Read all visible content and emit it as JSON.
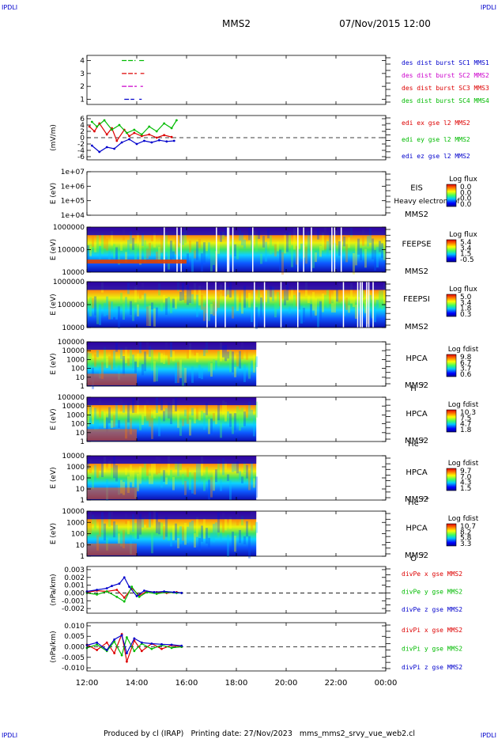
{
  "header": {
    "corner_tl": "IPDLI",
    "corner_tr": "IPDLI",
    "corner_bl": "IPDLI",
    "corner_br": "IPDLI",
    "spacecraft": "MMS2",
    "datetime": "07/Nov/2015 12:00"
  },
  "footer": {
    "text": "Produced by cl (IRAP)   Printing date: 27/Nov/2023   mms_mms2_srvy_vue_web2.cl"
  },
  "time_axis": {
    "ticks": [
      "12:00",
      "14:00",
      "16:00",
      "18:00",
      "20:00",
      "22:00",
      "00:00"
    ],
    "start_hour": 12,
    "end_hour": 24
  },
  "chart_data": [
    {
      "type": "line",
      "id": "burst",
      "ylabel": "",
      "yticks": [
        "1",
        "2",
        "3",
        "4"
      ],
      "ylim": [
        0.6,
        4.4
      ],
      "legend": [
        {
          "label": "des dist burst SC1 MMS1",
          "color": "#0000cc"
        },
        {
          "label": "des dist burst SC2 MMS2",
          "color": "#cc00cc"
        },
        {
          "label": "des dist burst SC3 MMS3",
          "color": "#dd0000"
        },
        {
          "label": "des dist burst SC4 MMS4",
          "color": "#00bb00"
        }
      ],
      "series": [
        {
          "name": "des dist burst SC4 MMS4",
          "y": 4,
          "intervals": [
            [
              13.4,
              13.95
            ],
            [
              14.1,
              14.3
            ]
          ]
        },
        {
          "name": "des dist burst SC3 MMS3",
          "y": 3,
          "intervals": [
            [
              13.4,
              14.0
            ],
            [
              14.15,
              14.3
            ]
          ]
        },
        {
          "name": "des dist burst SC2 MMS2",
          "y": 2,
          "intervals": [
            [
              13.4,
              14.0
            ],
            [
              14.15,
              14.25
            ]
          ]
        },
        {
          "name": "des dist burst SC1 MMS1",
          "y": 1,
          "intervals": [
            [
              13.5,
              13.9
            ],
            [
              14.1,
              14.2
            ]
          ]
        }
      ]
    },
    {
      "type": "line",
      "id": "edi",
      "ylabel": "(mV/m)",
      "yticks": [
        "-6",
        "-4",
        "-2",
        "0",
        "2",
        "4",
        "6"
      ],
      "ylim": [
        -7,
        7
      ],
      "legend": [
        {
          "label": "edi ex gse l2 MMS2",
          "color": "#dd0000"
        },
        {
          "label": "edi ey gse l2 MMS2",
          "color": "#00bb00"
        },
        {
          "label": "edi ez gse l2 MMS2",
          "color": "#0000cc"
        }
      ],
      "series": [
        {
          "name": "edi ex gse l2 MMS2",
          "x": [
            12.1,
            12.3,
            12.5,
            12.8,
            13.0,
            13.2,
            13.5,
            13.7,
            13.9,
            14.2,
            14.5,
            14.8,
            15.1,
            15.4
          ],
          "values": [
            3.5,
            2.0,
            4.5,
            1.0,
            3.0,
            -1.0,
            2.5,
            0.5,
            1.5,
            0.5,
            1.0,
            0.0,
            0.8,
            0.2
          ]
        },
        {
          "name": "edi ey gse l2 MMS2",
          "x": [
            12.2,
            12.4,
            12.7,
            13.0,
            13.3,
            13.6,
            13.9,
            14.2,
            14.5,
            14.8,
            15.1,
            15.4,
            15.6
          ],
          "values": [
            5.0,
            3.5,
            5.5,
            2.5,
            4.0,
            1.5,
            2.5,
            1.0,
            3.5,
            2.0,
            4.5,
            3.0,
            5.5
          ]
        },
        {
          "name": "edi ez gse l2 MMS2",
          "x": [
            12.2,
            12.5,
            12.8,
            13.1,
            13.4,
            13.7,
            14.0,
            14.3,
            14.6,
            14.9,
            15.2,
            15.5
          ],
          "values": [
            -2.5,
            -4.5,
            -3.0,
            -3.5,
            -1.5,
            -0.5,
            -2.0,
            -1.0,
            -1.5,
            -0.8,
            -1.2,
            -1.0
          ]
        }
      ]
    },
    {
      "type": "heatmap",
      "id": "eis",
      "ylabel": "E (eV)",
      "yticks": [
        "1e+04",
        "1e+05",
        "1e+06",
        "1e+07"
      ],
      "ylim": [
        10000,
        10000000
      ],
      "instrument": "EIS",
      "spacecraft": "MMS2",
      "product": "Heavy electron tof",
      "cbar_title": "Log flux",
      "cbar_ticks": [
        "0.0",
        "0.0",
        "0.0",
        "0.0"
      ],
      "data_extent": []
    },
    {
      "type": "heatmap",
      "id": "feepse",
      "ylabel": "E (eV)",
      "yticks": [
        "10000",
        "100000",
        "1000000"
      ],
      "ylim": [
        10000,
        1000000
      ],
      "instrument": "FEEPSE",
      "spacecraft": "MMS2",
      "cbar_title": "Log flux",
      "cbar_ticks": [
        "5.4",
        "3.4",
        "1.5",
        "-0.5"
      ],
      "data_extent": [
        12.0,
        24.0
      ]
    },
    {
      "type": "heatmap",
      "id": "feepsi",
      "ylabel": "E (eV)",
      "yticks": [
        "10000",
        "100000",
        "1000000"
      ],
      "ylim": [
        10000,
        1000000
      ],
      "instrument": "FEEPSI",
      "spacecraft": "MMS2",
      "cbar_title": "Log flux",
      "cbar_ticks": [
        "5.0",
        "3.4",
        "1.8",
        "0.3"
      ],
      "data_extent": [
        12.0,
        24.0
      ]
    },
    {
      "type": "heatmap",
      "id": "hpca_h",
      "ylabel": "E (eV)",
      "yticks": [
        "1",
        "10",
        "100",
        "1000",
        "10000",
        "100000"
      ],
      "ylim": [
        1,
        100000
      ],
      "instrument": "HPCA",
      "spacecraft": "MMS2",
      "ion": "H",
      "ion_sup": "+",
      "cbar_title": "Log fdist",
      "cbar_ticks": [
        "9.8",
        "6.7",
        "3.7",
        "0.6"
      ],
      "data_extent": [
        12.0,
        18.8
      ]
    },
    {
      "type": "heatmap",
      "id": "hpca_he",
      "ylabel": "E (eV)",
      "yticks": [
        "1",
        "10",
        "100",
        "1000",
        "10000",
        "100000"
      ],
      "ylim": [
        1,
        100000
      ],
      "instrument": "HPCA",
      "spacecraft": "MMS2",
      "ion": "He",
      "ion_sup": "+",
      "cbar_title": "Log fdist",
      "cbar_ticks": [
        "10.3",
        "7.5",
        "4.7",
        "1.8"
      ],
      "data_extent": [
        12.0,
        18.8
      ]
    },
    {
      "type": "heatmap",
      "id": "hpca_hepp",
      "ylabel": "E (eV)",
      "yticks": [
        "1",
        "10",
        "100",
        "1000",
        "10000"
      ],
      "ylim": [
        1,
        10000
      ],
      "instrument": "HPCA",
      "spacecraft": "MMS2",
      "ion": "He",
      "ion_sup": "++",
      "cbar_title": "Log fdist",
      "cbar_ticks": [
        "9.7",
        "7.0",
        "4.3",
        "1.5"
      ],
      "data_extent": [
        12.0,
        18.8
      ]
    },
    {
      "type": "heatmap",
      "id": "hpca_o",
      "ylabel": "E (eV)",
      "yticks": [
        "1",
        "10",
        "100",
        "1000",
        "10000"
      ],
      "ylim": [
        1,
        10000
      ],
      "instrument": "HPCA",
      "spacecraft": "MMS2",
      "ion": "O",
      "ion_sup": "+",
      "cbar_title": "Log fdist",
      "cbar_ticks": [
        "10.7",
        "8.2",
        "5.8",
        "3.3"
      ],
      "data_extent": [
        12.0,
        18.8
      ]
    },
    {
      "type": "line",
      "id": "divpe",
      "ylabel": "(nPa/km)",
      "yticks": [
        "-0.002",
        "-0.001",
        "0.000",
        "0.001",
        "0.002",
        "0.003"
      ],
      "ylim": [
        -0.0026,
        0.0034
      ],
      "legend": [
        {
          "label": "divPe x gse MMS2",
          "color": "#dd0000"
        },
        {
          "label": "divPe y gse MMS2",
          "color": "#00bb00"
        },
        {
          "label": "divPe z gse MMS2",
          "color": "#0000cc"
        }
      ],
      "series": [
        {
          "name": "divPe x gse MMS2",
          "x": [
            12.0,
            12.4,
            12.8,
            13.2,
            13.5,
            13.8,
            14.1,
            14.4,
            14.8,
            15.2,
            15.6,
            15.8
          ],
          "values": [
            0.0001,
            0.0003,
            0.0002,
            0.0004,
            -0.0006,
            0.0006,
            -0.0003,
            0.0002,
            0.0001,
            0.0,
            0.0001,
            0.0
          ]
        },
        {
          "name": "divPe y gse MMS2",
          "x": [
            12.0,
            12.4,
            12.8,
            13.2,
            13.5,
            13.8,
            14.1,
            14.4,
            14.8,
            15.2,
            15.6,
            15.8
          ],
          "values": [
            0.0,
            -0.0002,
            0.0002,
            -0.0005,
            -0.0011,
            0.0008,
            -0.0005,
            0.0001,
            -0.0001,
            0.0001,
            0.0,
            0.0
          ]
        },
        {
          "name": "divPe z gse MMS2",
          "x": [
            12.0,
            12.4,
            12.8,
            13.0,
            13.3,
            13.5,
            13.7,
            14.0,
            14.3,
            14.7,
            15.1,
            15.5,
            15.8
          ],
          "values": [
            0.0002,
            0.0004,
            0.0006,
            0.0009,
            0.0012,
            0.002,
            0.0008,
            -0.0004,
            0.0003,
            0.0001,
            0.0002,
            0.0001,
            0.0
          ]
        }
      ]
    },
    {
      "type": "line",
      "id": "divpi",
      "ylabel": "(nPa/km)",
      "yticks": [
        "-0.010",
        "-0.005",
        "0.000",
        "0.005",
        "0.010"
      ],
      "ylim": [
        -0.0115,
        0.0115
      ],
      "legend": [
        {
          "label": "divPi x gse MMS2",
          "color": "#dd0000"
        },
        {
          "label": "divPi y gse MMS2",
          "color": "#00bb00"
        },
        {
          "label": "divPi z gse MMS2",
          "color": "#0000cc"
        }
      ],
      "series": [
        {
          "name": "divPi x gse MMS2",
          "x": [
            12.0,
            12.4,
            12.8,
            13.1,
            13.4,
            13.6,
            13.9,
            14.2,
            14.6,
            15.0,
            15.4,
            15.8
          ],
          "values": [
            0.001,
            -0.0015,
            0.002,
            -0.003,
            0.006,
            -0.007,
            0.003,
            -0.002,
            0.0015,
            -0.001,
            0.0008,
            0.0
          ]
        },
        {
          "name": "divPi y gse MMS2",
          "x": [
            12.0,
            12.4,
            12.8,
            13.1,
            13.4,
            13.6,
            13.9,
            14.2,
            14.6,
            15.0,
            15.4,
            15.8
          ],
          "values": [
            -0.0005,
            0.001,
            -0.002,
            0.0025,
            -0.004,
            0.0045,
            -0.002,
            0.0015,
            -0.001,
            0.0008,
            -0.0005,
            0.0
          ]
        },
        {
          "name": "divPi z gse MMS2",
          "x": [
            12.0,
            12.4,
            12.8,
            13.1,
            13.4,
            13.6,
            13.9,
            14.2,
            14.6,
            15.0,
            15.4,
            15.8
          ],
          "values": [
            0.0008,
            0.002,
            -0.0015,
            0.0035,
            0.0055,
            -0.003,
            0.004,
            0.002,
            0.0015,
            0.0012,
            0.001,
            0.0005
          ]
        }
      ]
    }
  ]
}
